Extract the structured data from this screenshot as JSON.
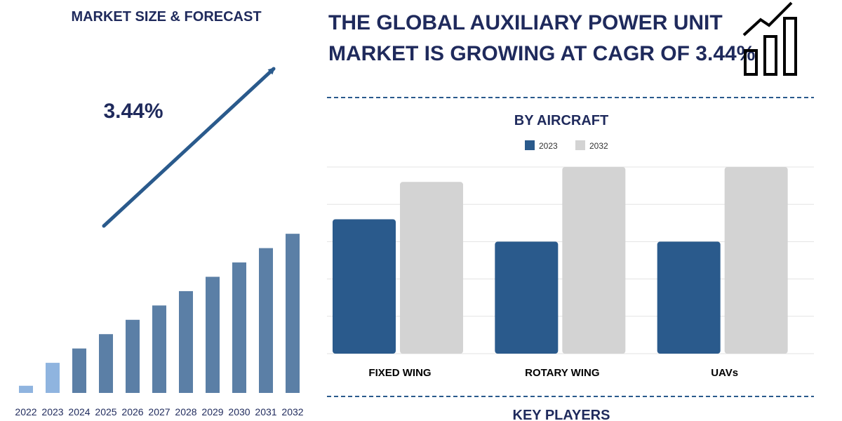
{
  "left_panel": {
    "title": "MARKET SIZE & FORECAST",
    "cagr_label": "3.44%"
  },
  "header": {
    "headline_line1": "THE GLOBAL AUXILIARY POWER UNIT",
    "headline_line2": "MARKET IS GROWING AT CAGR OF 3.44%",
    "icon": "growth-chart-icon"
  },
  "key_players": {
    "title": "KEY PLAYERS"
  },
  "colors": {
    "navy": "#1f2a5c",
    "bar_blue": "#5b7fa6",
    "bar_light": "#8fb4df",
    "series_2023": "#2a5a8c",
    "series_2032": "#d3d3d3",
    "dash": "#2a5a8c"
  },
  "chart_data": [
    {
      "type": "bar",
      "title": "MARKET SIZE & FORECAST",
      "categories": [
        "2022",
        "2023",
        "2024",
        "2025",
        "2026",
        "2027",
        "2028",
        "2029",
        "2030",
        "2031",
        "2032"
      ],
      "values": [
        10,
        42,
        62,
        82,
        102,
        122,
        142,
        162,
        182,
        202,
        222
      ],
      "ylim": [
        0,
        230
      ],
      "annotation": "3.44%",
      "grid": false,
      "highlighted": [
        "2022",
        "2023"
      ]
    },
    {
      "type": "bar",
      "title": "BY AIRCRAFT",
      "categories": [
        "FIXED WING",
        "ROTARY WING",
        "UAVs"
      ],
      "series": [
        {
          "name": "2023",
          "values": [
            3.6,
            3.0,
            3.0
          ]
        },
        {
          "name": "2032",
          "values": [
            4.6,
            5.0,
            5.0
          ]
        }
      ],
      "ylim": [
        0,
        5
      ],
      "grid": true,
      "legend": "top-center"
    }
  ]
}
